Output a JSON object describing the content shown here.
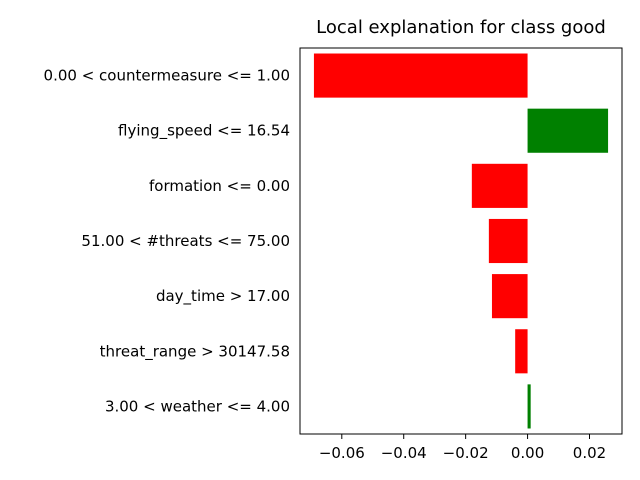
{
  "chart_data": {
    "type": "bar",
    "orientation": "horizontal",
    "title": "Local explanation for class good",
    "xlabel": "",
    "ylabel": "",
    "categories": [
      "0.00 < countermeasure <= 1.00",
      "flying_speed <= 16.54",
      "formation <= 0.00",
      "51.00 < #threats <= 75.00",
      "day_time > 17.00",
      "threat_range > 30147.58",
      "3.00 < weather <= 4.00"
    ],
    "values": [
      -0.069,
      0.026,
      -0.018,
      -0.0125,
      -0.0115,
      -0.004,
      0.001
    ],
    "xlim": [
      -0.0735,
      0.0305
    ],
    "xticks": [
      -0.06,
      -0.04,
      -0.02,
      0.0,
      0.02
    ],
    "xtick_labels": [
      "−0.06",
      "−0.04",
      "−0.02",
      "0.00",
      "0.02"
    ],
    "colors": {
      "positive": "#008000",
      "negative": "#ff0000"
    },
    "grid": false,
    "legend": "none"
  }
}
